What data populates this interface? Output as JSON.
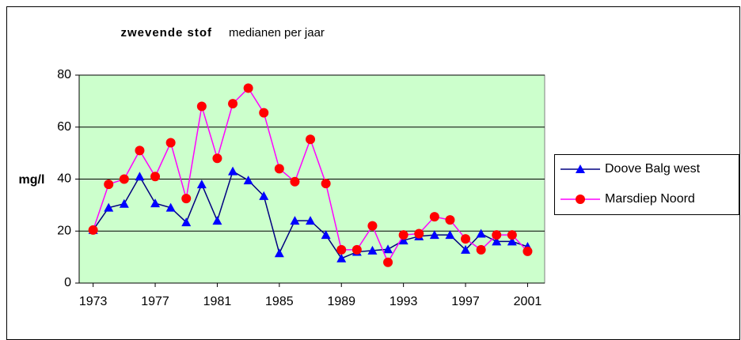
{
  "chart_data": {
    "type": "line",
    "title": "zwevende stof",
    "subtitle": "medianen per jaar",
    "y_label": "mg/l",
    "x": [
      1973,
      1974,
      1975,
      1976,
      1977,
      1978,
      1979,
      1980,
      1981,
      1982,
      1983,
      1984,
      1985,
      1986,
      1987,
      1988,
      1989,
      1990,
      1991,
      1992,
      1993,
      1994,
      1995,
      1996,
      1997,
      1998,
      1999,
      2000,
      2001
    ],
    "series": [
      {
        "name": "Doove Balg west",
        "color": "#000080",
        "marker_color": "#0000ff",
        "marker": "triangle",
        "values": [
          20.4,
          29,
          30.5,
          41,
          30.7,
          29,
          23.4,
          38,
          24,
          43,
          39.5,
          33.5,
          11.5,
          24,
          24,
          18.5,
          9.5,
          12,
          12.5,
          13,
          16.4,
          18,
          18.5,
          18.5,
          12.8,
          19,
          16,
          16,
          14
        ]
      },
      {
        "name": "Marsdiep Noord",
        "color": "#ff00ff",
        "marker_color": "#ff0000",
        "marker": "circle",
        "values": [
          20.4,
          38,
          40,
          51,
          41,
          54,
          32.5,
          68,
          48,
          69,
          75,
          65.5,
          44,
          39,
          55.3,
          38.3,
          12.8,
          12.8,
          22,
          8,
          18.5,
          19,
          25.5,
          24.3,
          17,
          12.8,
          18.5,
          18.5,
          12.2
        ]
      }
    ],
    "xlim": [
      1972.1,
      2002.1
    ],
    "xticks": [
      1973,
      1977,
      1981,
      1985,
      1989,
      1993,
      1997,
      2001
    ],
    "ylim": [
      0,
      80
    ],
    "yticks": [
      0,
      20,
      40,
      60,
      80
    ],
    "grid": true,
    "plot_background": "#ccffcc",
    "legend": "right"
  }
}
